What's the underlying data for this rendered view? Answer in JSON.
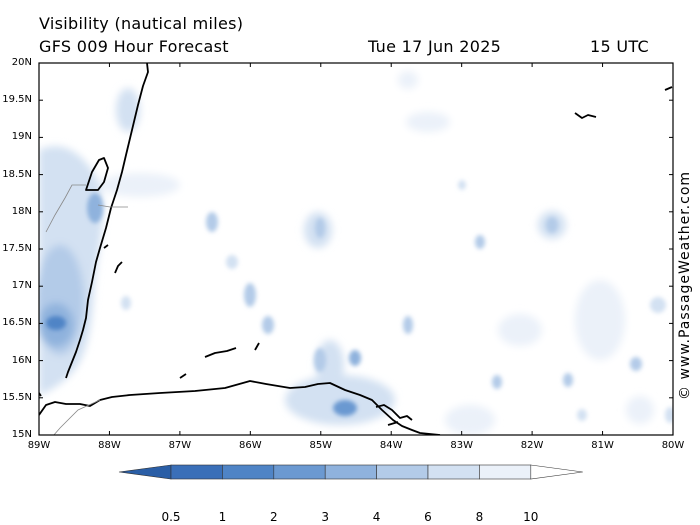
{
  "header": {
    "title": "Visibility (nautical miles)",
    "subtitle": "GFS 009 Hour Forecast",
    "date": "Tue 17 Jun 2025",
    "time": "15 UTC"
  },
  "map": {
    "lat_labels": [
      "20N",
      "19.5N",
      "19N",
      "18.5N",
      "18N",
      "17.5N",
      "17N",
      "16.5N",
      "16N",
      "15.5N",
      "15N"
    ],
    "lon_labels": [
      "89W",
      "88W",
      "87W",
      "86W",
      "85W",
      "84W",
      "83W",
      "82W",
      "81W",
      "80W"
    ],
    "coast_color": "#000000",
    "land_color": "#ffffff"
  },
  "colorbar": {
    "labels": [
      "0.5",
      "1",
      "2",
      "3",
      "4",
      "6",
      "8",
      "10"
    ],
    "colors": [
      "#3a6fb8",
      "#4f84c6",
      "#6b99d1",
      "#8fb2dd",
      "#b3cbe8",
      "#d3e1f2",
      "#ebf1f9",
      "#ffffff"
    ]
  },
  "credit": "© www.PassageWeather.com"
}
